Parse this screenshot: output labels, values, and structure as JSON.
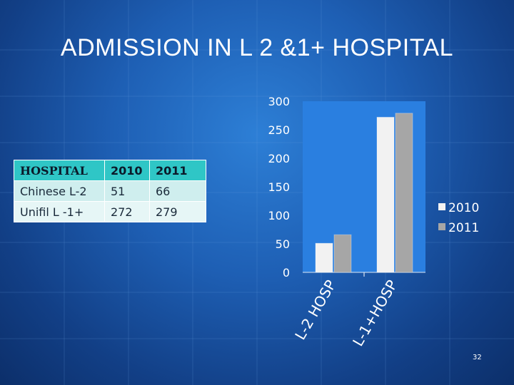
{
  "slide": {
    "title": "ADMISSION IN L 2 &1+ HOSPITAL",
    "page_number": "32"
  },
  "table": {
    "headers": [
      "HOSPITAL",
      "2010",
      "2011"
    ],
    "rows": [
      [
        "Chinese L-2",
        "51",
        "66"
      ],
      [
        "Unifil L -1+",
        "272",
        "279"
      ]
    ]
  },
  "colors": {
    "series_2010": "#f2f2f2",
    "series_2011": "#a6a6a6",
    "plot_bg": "#2a7fe0"
  },
  "chart_data": {
    "type": "bar",
    "categories": [
      "L-2 HOSP",
      "L-1+HOSP"
    ],
    "series": [
      {
        "name": "2010",
        "values": [
          51,
          272
        ]
      },
      {
        "name": "2011",
        "values": [
          66,
          279
        ]
      }
    ],
    "ylim": [
      0,
      300
    ],
    "yticks": [
      0,
      50,
      100,
      150,
      200,
      250,
      300
    ],
    "legend": "right"
  }
}
